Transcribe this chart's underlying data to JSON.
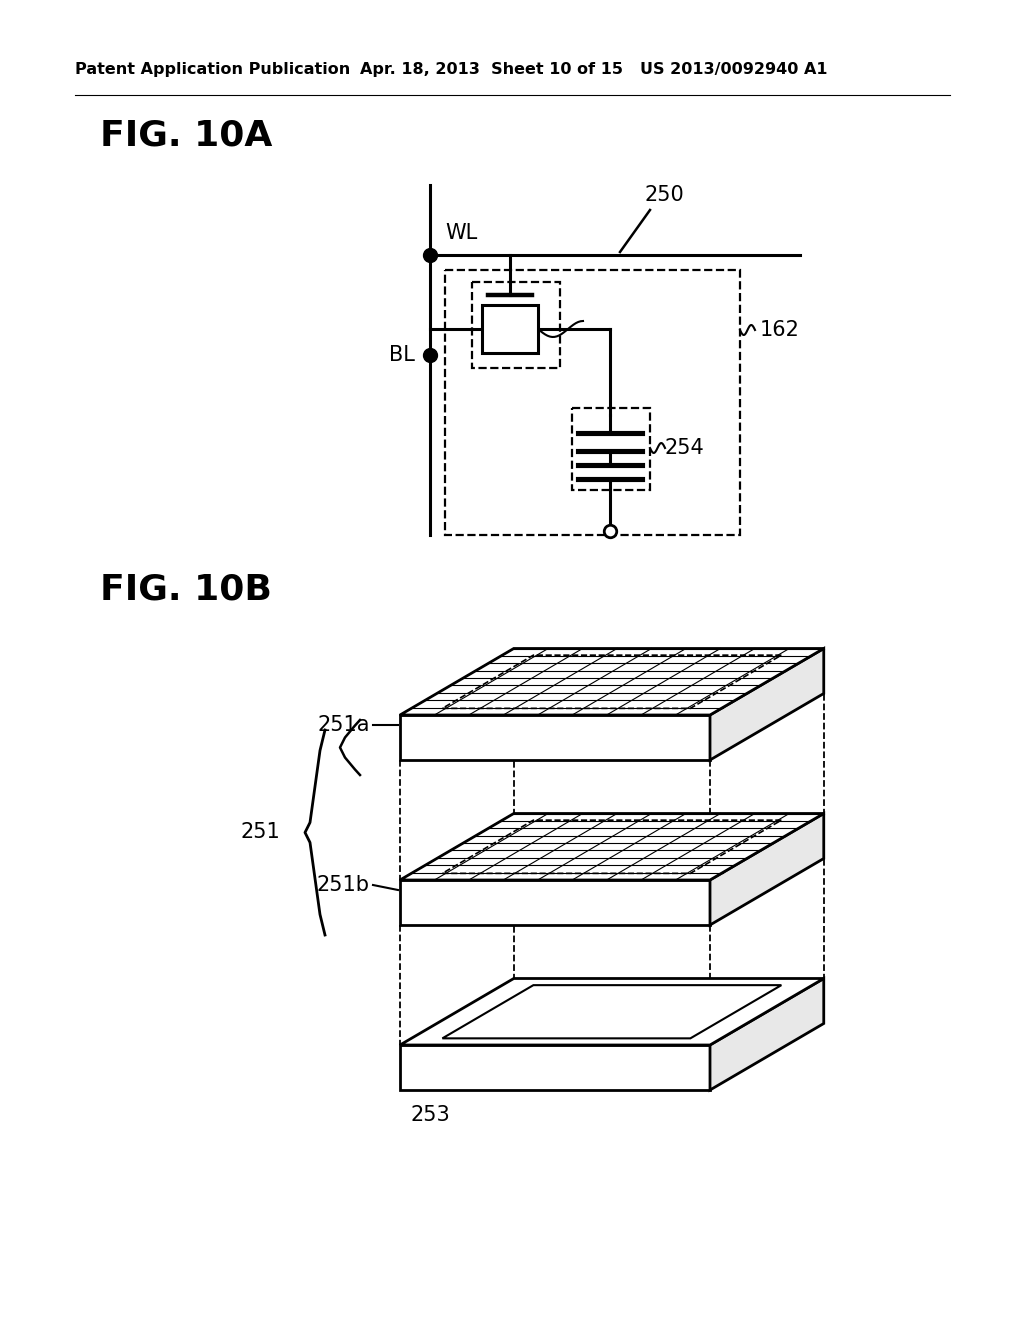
{
  "bg_color": "#ffffff",
  "header_left": "Patent Application Publication",
  "header_mid": "Apr. 18, 2013  Sheet 10 of 15",
  "header_right": "US 2013/0092940 A1",
  "fig_10a_label": "FIG. 10A",
  "fig_10b_label": "FIG. 10B",
  "label_250": "250",
  "label_162": "162",
  "label_254": "254",
  "label_WL": "WL",
  "label_BL": "BL",
  "label_251a": "251a",
  "label_251b": "251b",
  "label_251": "251",
  "label_253": "253"
}
